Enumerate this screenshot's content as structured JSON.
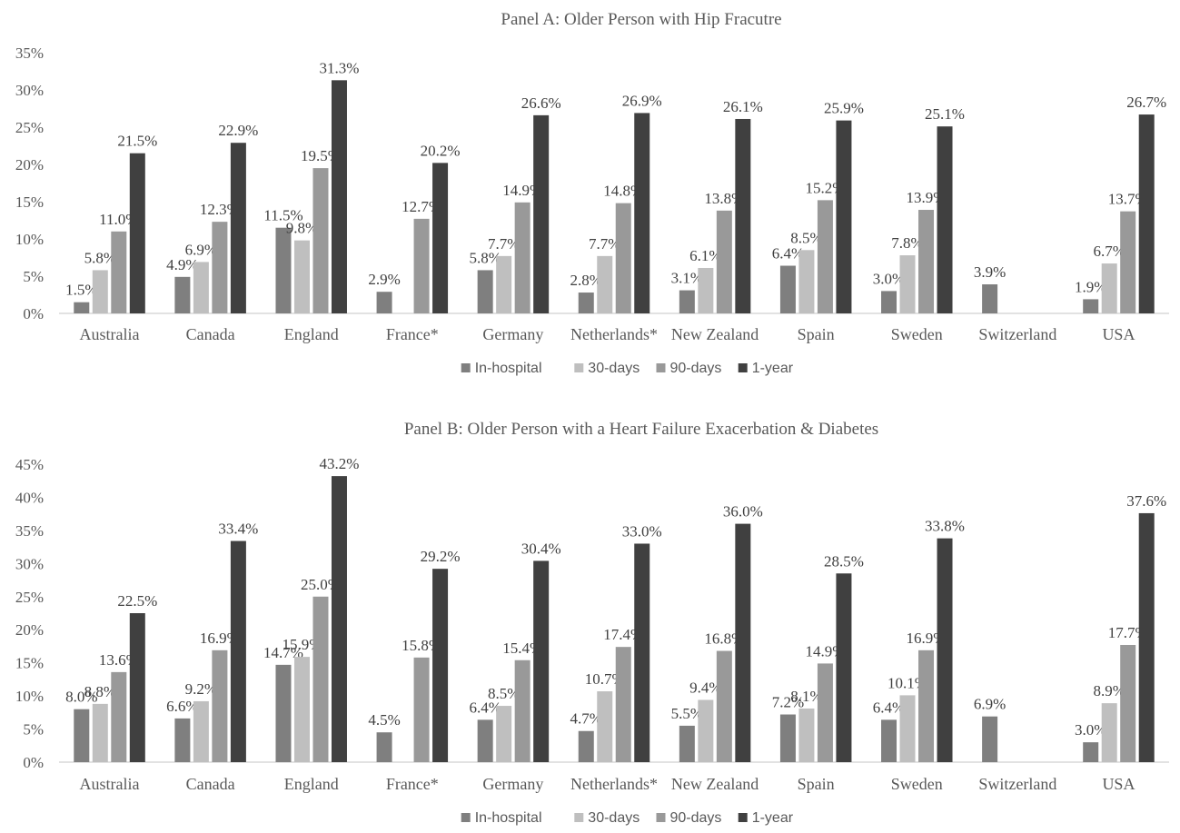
{
  "chart_data": [
    {
      "type": "bar",
      "title": "Panel A: Older Person with Hip Fracutre",
      "categories": [
        "Australia",
        "Canada",
        "England",
        "France*",
        "Germany",
        "Netherlands*",
        "New Zealand",
        "Spain",
        "Sweden",
        "Switzerland",
        "USA"
      ],
      "ylim": [
        0,
        35
      ],
      "yticks": [
        "0%",
        "5%",
        "10%",
        "15%",
        "20%",
        "25%",
        "30%",
        "35%"
      ],
      "grid": false,
      "legend_position": "bottom",
      "series": [
        {
          "name": "In-hospital",
          "color": "#7f7f7f",
          "values": [
            1.5,
            4.9,
            11.5,
            2.9,
            5.8,
            2.8,
            3.1,
            6.4,
            3.0,
            3.9,
            1.9
          ]
        },
        {
          "name": "30-days",
          "color": "#bfbfbf",
          "values": [
            5.8,
            6.9,
            9.8,
            null,
            7.7,
            7.7,
            6.1,
            8.5,
            7.8,
            null,
            6.7
          ]
        },
        {
          "name": "90-days",
          "color": "#999999",
          "values": [
            11.0,
            12.3,
            19.5,
            12.7,
            14.9,
            14.8,
            13.8,
            15.2,
            13.9,
            null,
            13.7
          ]
        },
        {
          "name": "1-year",
          "color": "#404040",
          "values": [
            21.5,
            22.9,
            31.3,
            20.2,
            26.6,
            26.9,
            26.1,
            25.9,
            25.1,
            null,
            26.7
          ]
        }
      ]
    },
    {
      "type": "bar",
      "title": "Panel B: Older Person with a Heart Failure Exacerbation & Diabetes",
      "categories": [
        "Australia",
        "Canada",
        "England",
        "France*",
        "Germany",
        "Netherlands*",
        "New Zealand",
        "Spain",
        "Sweden",
        "Switzerland",
        "USA"
      ],
      "ylim": [
        0,
        45
      ],
      "yticks": [
        "0%",
        "5%",
        "10%",
        "15%",
        "20%",
        "25%",
        "30%",
        "35%",
        "40%",
        "45%"
      ],
      "grid": false,
      "legend_position": "bottom",
      "series": [
        {
          "name": "In-hospital",
          "color": "#7f7f7f",
          "values": [
            8.0,
            6.6,
            14.7,
            4.5,
            6.4,
            4.7,
            5.5,
            7.2,
            6.4,
            6.9,
            3.0
          ]
        },
        {
          "name": "30-days",
          "color": "#bfbfbf",
          "values": [
            8.8,
            9.2,
            15.9,
            null,
            8.5,
            10.7,
            9.4,
            8.1,
            10.1,
            null,
            8.9
          ]
        },
        {
          "name": "90-days",
          "color": "#999999",
          "values": [
            13.6,
            16.9,
            25.0,
            15.8,
            15.4,
            17.4,
            16.8,
            14.9,
            16.9,
            null,
            17.7
          ]
        },
        {
          "name": "1-year",
          "color": "#404040",
          "values": [
            22.5,
            33.4,
            43.2,
            29.2,
            30.4,
            33.0,
            36.0,
            28.5,
            33.8,
            null,
            37.6
          ]
        }
      ]
    }
  ]
}
